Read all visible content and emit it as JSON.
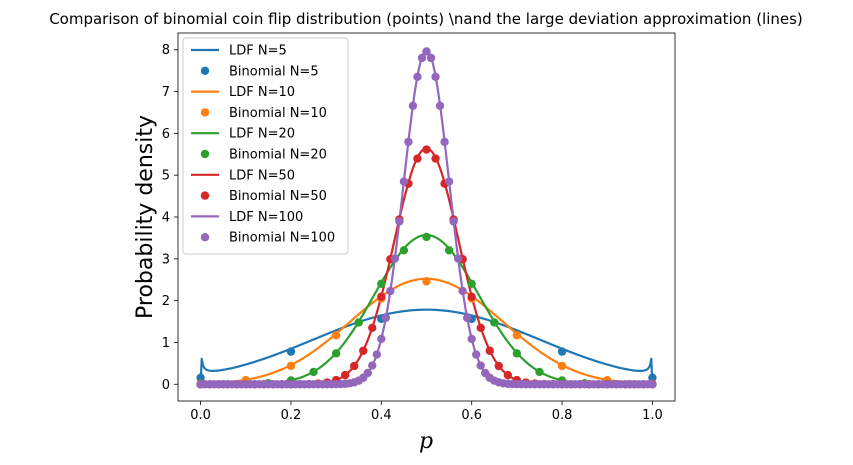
{
  "chart_data": {
    "type": "line",
    "title": "Comparison of binomial coin flip distribution (points) \\nand the large deviation approximation (lines)",
    "xlabel": "p",
    "ylabel": "Probability density",
    "xlim": [
      -0.05,
      1.05
    ],
    "ylim": [
      -0.4,
      8.4
    ],
    "xticks": [
      0.0,
      0.2,
      0.4,
      0.6,
      0.8,
      1.0
    ],
    "xtick_labels": [
      "0.0",
      "0.2",
      "0.4",
      "0.6",
      "0.8",
      "1.0"
    ],
    "yticks": [
      0,
      1,
      2,
      3,
      4,
      5,
      6,
      7,
      8
    ],
    "ytick_labels": [
      "0",
      "1",
      "2",
      "3",
      "4",
      "5",
      "6",
      "7",
      "8"
    ],
    "grid": false,
    "legend_position": "top-left",
    "series": [
      {
        "name": "LDF N=5",
        "kind": "line",
        "color": "#1f77b4",
        "N": 5
      },
      {
        "name": "Binomial N=5",
        "kind": "points",
        "color": "#1f77b4",
        "N": 5
      },
      {
        "name": "LDF N=10",
        "kind": "line",
        "color": "#ff7f0e",
        "N": 10
      },
      {
        "name": "Binomial N=10",
        "kind": "points",
        "color": "#ff7f0e",
        "N": 10
      },
      {
        "name": "LDF N=20",
        "kind": "line",
        "color": "#2ca02c",
        "N": 20
      },
      {
        "name": "Binomial N=20",
        "kind": "points",
        "color": "#2ca02c",
        "N": 20
      },
      {
        "name": "LDF N=50",
        "kind": "line",
        "color": "#d62728",
        "N": 50
      },
      {
        "name": "Binomial N=50",
        "kind": "points",
        "color": "#d62728",
        "N": 50
      },
      {
        "name": "LDF N=100",
        "kind": "line",
        "color": "#9467bd",
        "N": 100
      },
      {
        "name": "Binomial N=100",
        "kind": "points",
        "color": "#9467bd",
        "N": 100
      }
    ]
  }
}
